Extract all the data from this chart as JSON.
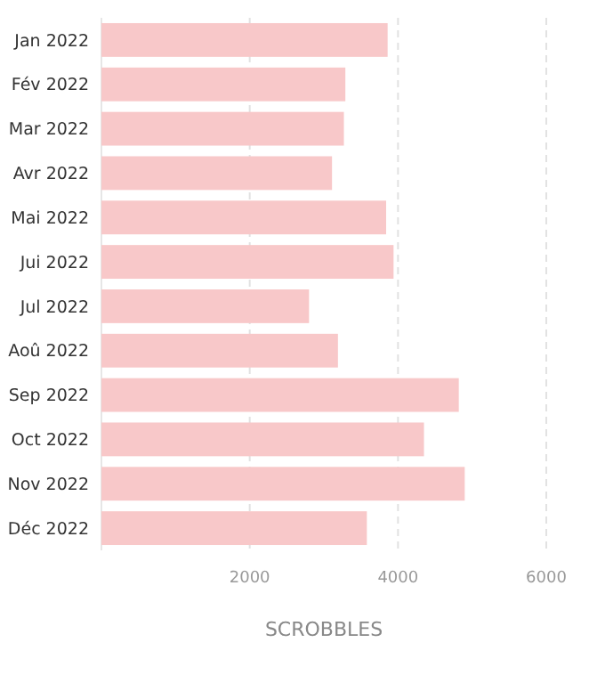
{
  "chart_data": {
    "type": "bar",
    "orientation": "horizontal",
    "xlabel": "SCROBBLES",
    "categories": [
      "Jan 2022",
      "Fév 2022",
      "Mar 2022",
      "Avr 2022",
      "Mai 2022",
      "Jui 2022",
      "Jul 2022",
      "Aoû 2022",
      "Sep 2022",
      "Oct 2022",
      "Nov 2022",
      "Déc 2022"
    ],
    "values": [
      3860,
      3290,
      3270,
      3110,
      3840,
      3940,
      2800,
      3190,
      4820,
      4350,
      4900,
      3580
    ],
    "color": "#f8c8c9",
    "xlim": [
      0,
      6000
    ],
    "xticks": [
      2000,
      4000,
      6000
    ],
    "grid": "x"
  }
}
